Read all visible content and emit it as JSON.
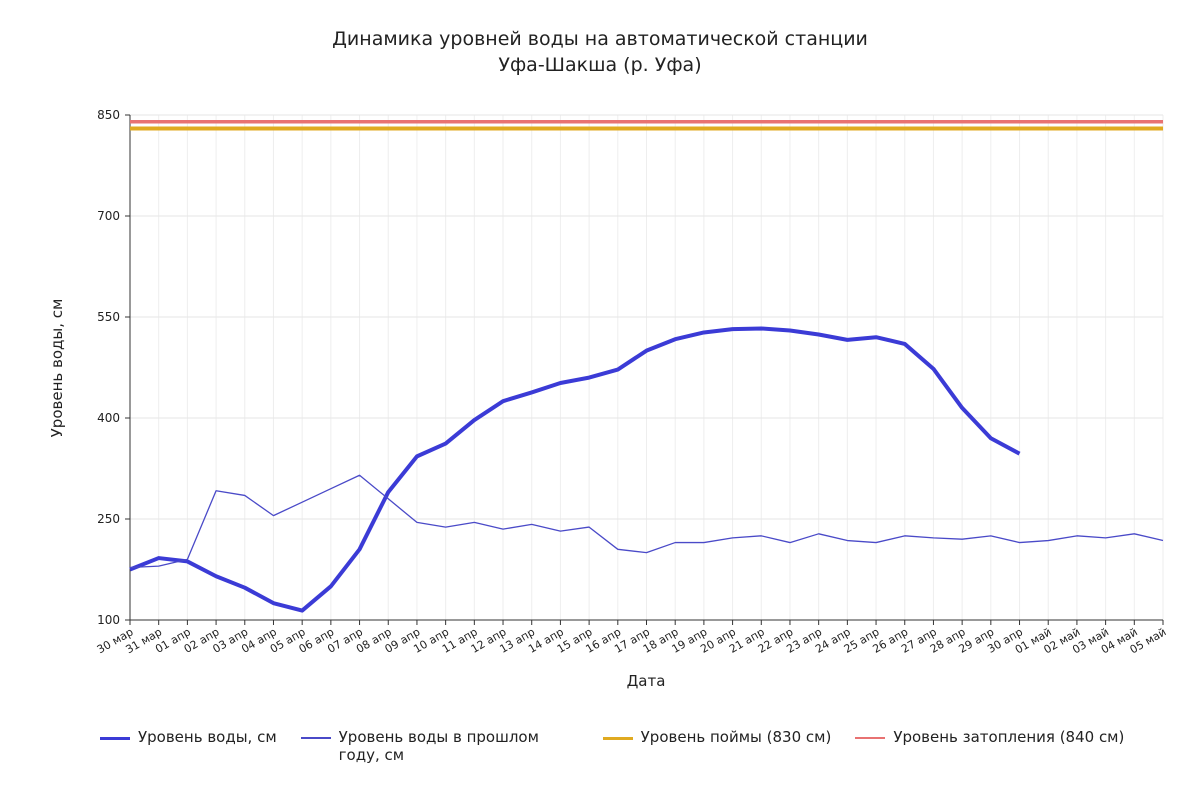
{
  "chart_data": {
    "type": "line",
    "title": [
      "Динамика уровней воды на автоматической станции",
      "Уфа-Шакша (р. Уфа)"
    ],
    "xlabel": "Дата",
    "ylabel": "Уровень воды, см",
    "categories": [
      "30 мар",
      "31 мар",
      "01 апр",
      "02 апр",
      "03 апр",
      "04 апр",
      "05 апр",
      "06 апр",
      "07 апр",
      "08 апр",
      "09 апр",
      "10 апр",
      "11 апр",
      "12 апр",
      "13 апр",
      "14 апр",
      "15 апр",
      "16 апр",
      "17 апр",
      "18 апр",
      "19 апр",
      "20 апр",
      "21 апр",
      "22 апр",
      "23 апр",
      "24 апр",
      "25 апр",
      "26 апр",
      "27 апр",
      "28 апр",
      "29 апр",
      "30 апр",
      "01 май",
      "02 май",
      "03 май",
      "04 май",
      "05 май"
    ],
    "series": [
      {
        "name": "Уровень воды, см",
        "color": "#3b3bd6",
        "width": 4,
        "values": [
          175,
          192,
          187,
          165,
          148,
          125,
          114,
          150,
          205,
          290,
          343,
          362,
          397,
          425,
          438,
          452,
          460,
          472,
          500,
          517,
          527,
          532,
          533,
          530,
          524,
          516,
          520,
          510,
          473,
          415,
          370,
          347,
          null,
          null,
          null,
          null,
          null
        ]
      },
      {
        "name": "Уровень воды в прошлом году, см",
        "color": "#4a4ac8",
        "width": 1.3,
        "values": [
          178,
          180,
          190,
          292,
          285,
          255,
          275,
          295,
          315,
          280,
          245,
          238,
          245,
          235,
          242,
          232,
          238,
          205,
          200,
          215,
          215,
          222,
          225,
          215,
          228,
          218,
          215,
          225,
          222,
          220,
          225,
          215,
          218,
          225,
          222,
          228,
          218
        ]
      },
      {
        "name": "Уровень поймы (830 см)",
        "color": "#e0aa20",
        "width": 4,
        "values": [
          830,
          830,
          830,
          830,
          830,
          830,
          830,
          830,
          830,
          830,
          830,
          830,
          830,
          830,
          830,
          830,
          830,
          830,
          830,
          830,
          830,
          830,
          830,
          830,
          830,
          830,
          830,
          830,
          830,
          830,
          830,
          830,
          830,
          830,
          830,
          830,
          830
        ]
      },
      {
        "name": "Уровень затопления (840 см)",
        "color": "#e87272",
        "width": 3.5,
        "values": [
          840,
          840,
          840,
          840,
          840,
          840,
          840,
          840,
          840,
          840,
          840,
          840,
          840,
          840,
          840,
          840,
          840,
          840,
          840,
          840,
          840,
          840,
          840,
          840,
          840,
          840,
          840,
          840,
          840,
          840,
          840,
          840,
          840,
          840,
          840,
          840,
          840
        ]
      }
    ],
    "ylim": [
      100,
      850
    ],
    "yticks": [
      100,
      250,
      400,
      550,
      700,
      850
    ],
    "grid": true,
    "legend": "bottom"
  }
}
